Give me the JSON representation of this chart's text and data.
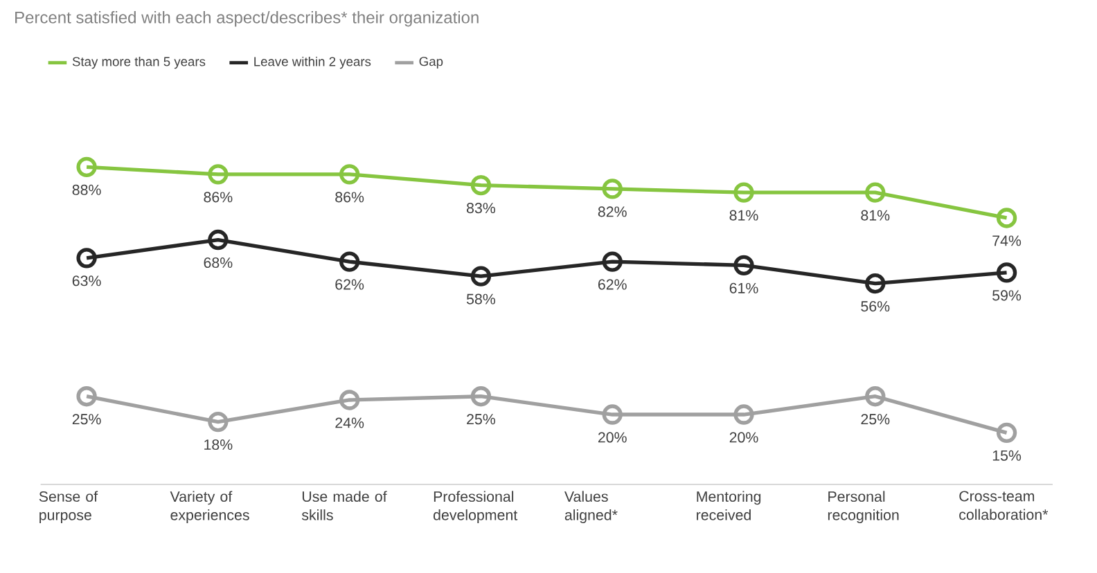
{
  "chart_data": {
    "type": "line",
    "title": "Percent satisfied with each aspect/describes* their organization",
    "categories": [
      "Sense of purpose",
      "Variety of experiences",
      "Use made of skills",
      "Professional development",
      "Values aligned*",
      "Mentoring received",
      "Personal recognition",
      "Cross-team collaboration*"
    ],
    "series": [
      {
        "name": "Stay more than 5 years",
        "color": "#86c540",
        "values": [
          88,
          86,
          86,
          83,
          82,
          81,
          81,
          74
        ],
        "value_labels": [
          "88%",
          "86%",
          "86%",
          "83%",
          "82%",
          "81%",
          "81%",
          "74%"
        ]
      },
      {
        "name": "Leave within 2 years",
        "color": "#262626",
        "values": [
          63,
          68,
          62,
          58,
          62,
          61,
          56,
          59
        ],
        "value_labels": [
          "63%",
          "68%",
          "62%",
          "58%",
          "62%",
          "61%",
          "56%",
          "59%"
        ]
      },
      {
        "name": "Gap",
        "color": "#a0a0a0",
        "values": [
          25,
          18,
          24,
          25,
          20,
          20,
          25,
          15
        ],
        "value_labels": [
          "25%",
          "18%",
          "24%",
          "25%",
          "20%",
          "20%",
          "25%",
          "15%"
        ]
      }
    ],
    "marker": "circle",
    "line_style": "solid",
    "grid": false,
    "legend": "top left",
    "tick_labels": "x"
  }
}
